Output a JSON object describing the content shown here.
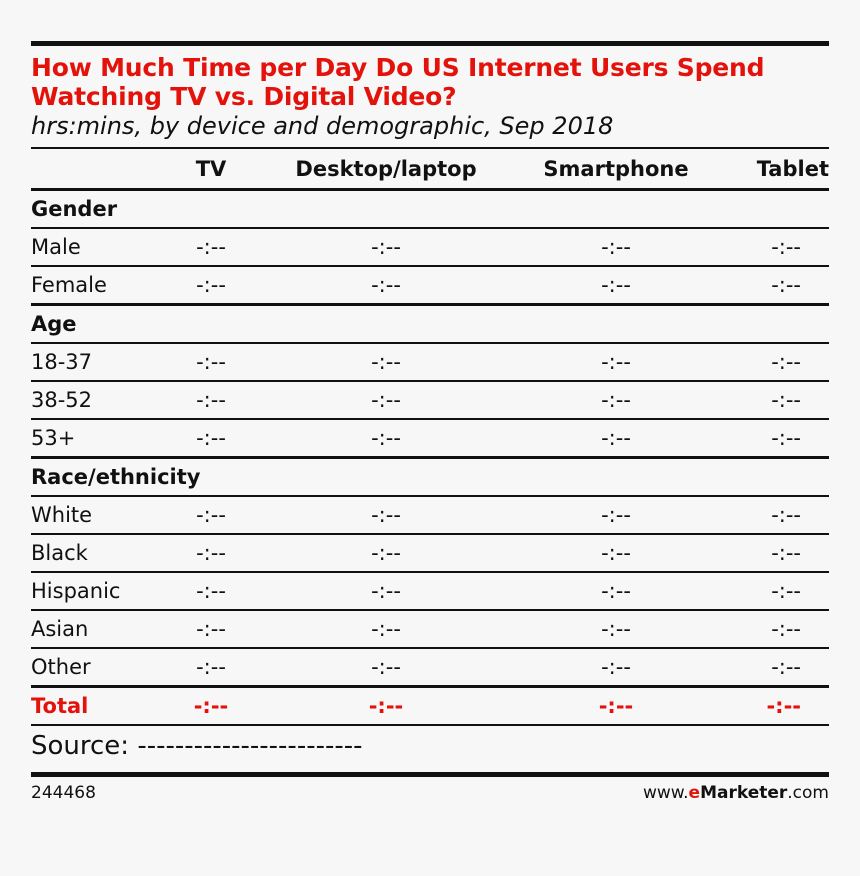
{
  "chart_data": {
    "type": "table",
    "title": "How Much Time per Day Do US Internet Users Spend Watching TV vs. Digital Video?",
    "subtitle": "hrs:mins, by device and demographic, Sep 2018",
    "columns": [
      "TV",
      "Desktop/laptop",
      "Smartphone",
      "Tablet"
    ],
    "sections": [
      {
        "name": "Gender",
        "rows": [
          {
            "label": "Male",
            "values": [
              "-:--",
              "-:--",
              "-:--",
              "-:--"
            ]
          },
          {
            "label": "Female",
            "values": [
              "-:--",
              "-:--",
              "-:--",
              "-:--"
            ]
          }
        ]
      },
      {
        "name": "Age",
        "rows": [
          {
            "label": "18-37",
            "values": [
              "-:--",
              "-:--",
              "-:--",
              "-:--"
            ]
          },
          {
            "label": "38-52",
            "values": [
              "-:--",
              "-:--",
              "-:--",
              "-:--"
            ]
          },
          {
            "label": "53+",
            "values": [
              "-:--",
              "-:--",
              "-:--",
              "-:--"
            ]
          }
        ]
      },
      {
        "name": "Race/ethnicity",
        "rows": [
          {
            "label": "White",
            "values": [
              "-:--",
              "-:--",
              "-:--",
              "-:--"
            ]
          },
          {
            "label": "Black",
            "values": [
              "-:--",
              "-:--",
              "-:--",
              "-:--"
            ]
          },
          {
            "label": "Hispanic",
            "values": [
              "-:--",
              "-:--",
              "-:--",
              "-:--"
            ]
          },
          {
            "label": "Asian",
            "values": [
              "-:--",
              "-:--",
              "-:--",
              "-:--"
            ]
          },
          {
            "label": "Other",
            "values": [
              "-:--",
              "-:--",
              "-:--",
              "-:--"
            ]
          }
        ]
      }
    ],
    "total": {
      "label": "Total",
      "values": [
        "-:--",
        "-:--",
        "-:--",
        "-:--"
      ]
    }
  },
  "source": "Source: ------------------------",
  "footer": {
    "chart_id": "244468",
    "brand_prefix": "www.",
    "brand_e": "e",
    "brand_name": "Marketer",
    "brand_suffix": ".com"
  },
  "colors": {
    "accent": "#e3120b",
    "text": "#111111",
    "background": "#f7f7f7"
  }
}
